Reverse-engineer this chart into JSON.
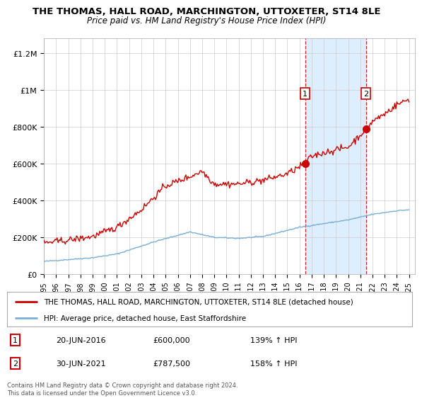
{
  "title": "THE THOMAS, HALL ROAD, MARCHINGTON, UTTOXETER, ST14 8LE",
  "subtitle": "Price paid vs. HM Land Registry's House Price Index (HPI)",
  "ylabel_ticks": [
    "£0",
    "£200K",
    "£400K",
    "£600K",
    "£800K",
    "£1M",
    "£1.2M"
  ],
  "ytick_values": [
    0,
    200000,
    400000,
    600000,
    800000,
    1000000,
    1200000
  ],
  "ylim": [
    0,
    1280000
  ],
  "legend_line1": "THE THOMAS, HALL ROAD, MARCHINGTON, UTTOXETER, ST14 8LE (detached house)",
  "legend_line2": "HPI: Average price, detached house, East Staffordshire",
  "sale1_date": "20-JUN-2016",
  "sale1_price": "£600,000",
  "sale1_hpi": "139% ↑ HPI",
  "sale2_date": "30-JUN-2021",
  "sale2_price": "£787,500",
  "sale2_hpi": "158% ↑ HPI",
  "footer": "Contains HM Land Registry data © Crown copyright and database right 2024.\nThis data is licensed under the Open Government Licence v3.0.",
  "red_color": "#cc0000",
  "blue_color": "#7aadd4",
  "shade_color": "#ddeeff",
  "dashed_red": "#cc0000",
  "background_color": "#ffffff",
  "grid_color": "#cccccc",
  "sale1_year": 2016.46,
  "sale2_year": 2021.46,
  "sale1_value": 600000,
  "sale2_value": 787500
}
